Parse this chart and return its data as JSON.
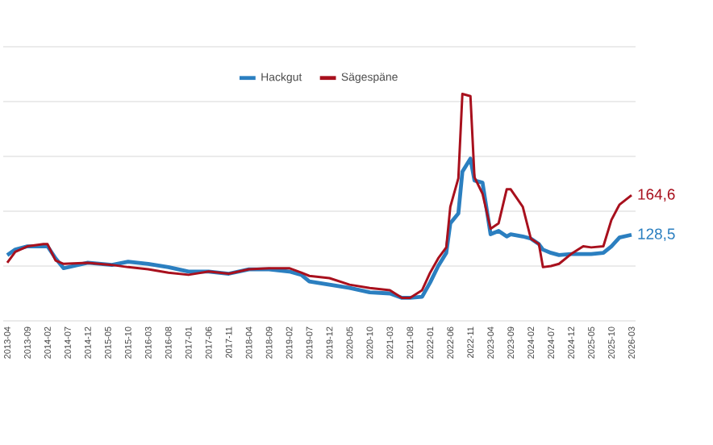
{
  "chart_data": {
    "type": "line",
    "x": [
      "2013-04",
      "2013-06",
      "2013-09",
      "2014-01",
      "2014-02",
      "2014-04",
      "2014-06",
      "2014-12",
      "2015-06",
      "2015-10",
      "2016-03",
      "2016-08",
      "2017-01",
      "2017-06",
      "2017-11",
      "2018-04",
      "2018-09",
      "2019-02",
      "2019-05",
      "2019-07",
      "2019-12",
      "2020-05",
      "2020-10",
      "2021-03",
      "2021-06",
      "2021-08",
      "2021-11",
      "2022-01",
      "2022-03",
      "2022-05",
      "2022-06",
      "2022-08",
      "2022-09",
      "2022-11",
      "2022-12",
      "2023-02",
      "2023-04",
      "2023-06",
      "2023-08",
      "2023-09",
      "2023-12",
      "2024-02",
      "2024-04",
      "2024-05",
      "2024-07",
      "2024-09",
      "2024-12",
      "2025-03",
      "2025-05",
      "2025-08",
      "2025-10",
      "2025-12",
      "2026-03"
    ],
    "series": [
      {
        "name": "Hackgut",
        "color": "#2b7fc0",
        "values": [
          110,
          115,
          118,
          118,
          118,
          107,
          98,
          103,
          101,
          104,
          102,
          99,
          95,
          95,
          93,
          97,
          97,
          95,
          92,
          86,
          83,
          80,
          76,
          75,
          71,
          71,
          72,
          85,
          100,
          112,
          139,
          148,
          186,
          198,
          178,
          176,
          129,
          132,
          127,
          129,
          127,
          125,
          120,
          115,
          112,
          110,
          111,
          111,
          111,
          112,
          118,
          126,
          128.5
        ],
        "value_labels": [
          null,
          null,
          null,
          null,
          null,
          null,
          null,
          null,
          null,
          null,
          null,
          null,
          null,
          null,
          null,
          null,
          null,
          null,
          null,
          null,
          null,
          null,
          null,
          null,
          null,
          null,
          null,
          null,
          null,
          null,
          null,
          null,
          null,
          null,
          null,
          null,
          null,
          null,
          null,
          null,
          null,
          null,
          null,
          null,
          null,
          null,
          null,
          null,
          null,
          null,
          null,
          null,
          "128,5"
        ]
      },
      {
        "name": "Sägespäne",
        "color": "#a8101d",
        "values": [
          103,
          113,
          118,
          120,
          120,
          105,
          102,
          103,
          101,
          99,
          97,
          94,
          92,
          95,
          93,
          97,
          98,
          98,
          94,
          91,
          89,
          83,
          80,
          78,
          71,
          71,
          78,
          94,
          107,
          117,
          154,
          180,
          257,
          255,
          181,
          166,
          134,
          139,
          170,
          170,
          154,
          125,
          120,
          99,
          100,
          102,
          111,
          118,
          117,
          118,
          142,
          156,
          164.6
        ],
        "value_labels": [
          null,
          null,
          null,
          null,
          null,
          null,
          null,
          null,
          null,
          null,
          null,
          null,
          null,
          null,
          null,
          null,
          null,
          null,
          null,
          null,
          null,
          null,
          null,
          null,
          null,
          null,
          null,
          null,
          null,
          null,
          null,
          null,
          null,
          null,
          null,
          null,
          null,
          null,
          null,
          null,
          null,
          null,
          null,
          null,
          null,
          null,
          null,
          null,
          null,
          null,
          null,
          null,
          "164,6"
        ]
      }
    ],
    "xlim": [
      "2013-03",
      "2026-04"
    ],
    "xticks": [
      "2013-04",
      "2013-09",
      "2014-02",
      "2014-07",
      "2014-12",
      "2015-05",
      "2015-10",
      "2016-03",
      "2016-08",
      "2017-01",
      "2017-06",
      "2017-11",
      "2018-04",
      "2018-09",
      "2019-02",
      "2019-07",
      "2019-12",
      "2020-05",
      "2020-10",
      "2021-03",
      "2021-08",
      "2022-01",
      "2022-06",
      "2022-11",
      "2023-04",
      "2023-09",
      "2024-02",
      "2024-07",
      "2024-12",
      "2025-05",
      "2025-10",
      "2026-03"
    ],
    "ylim": [
      50,
      300
    ],
    "yticks": [
      {
        "value": 50,
        "label": null
      },
      {
        "value": 100,
        "label": null
      },
      {
        "value": 150,
        "label": null
      },
      {
        "value": 200,
        "label": null
      },
      {
        "value": 250,
        "label": null
      },
      {
        "value": 300,
        "label": null
      }
    ],
    "tick_labels": "x",
    "grid": "y",
    "legend": "top",
    "marker": "none",
    "line_style": "solid"
  }
}
